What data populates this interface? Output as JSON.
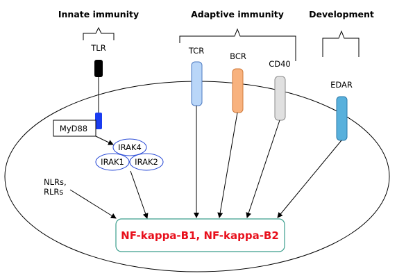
{
  "categories": {
    "innate": "Innate immunity",
    "adaptive": "Adaptive immunity",
    "development": "Development"
  },
  "receptors": {
    "tlr": "TLR",
    "tcr": "TCR",
    "bcr": "BCR",
    "cd40": "CD40",
    "edar": "EDAR"
  },
  "adaptors": {
    "myd88": "MyD88",
    "irak4": "IRAK4",
    "irak1": "IRAK1",
    "irak2": "IRAK2"
  },
  "other_inputs": {
    "line1": "NLRs,",
    "line2": "RLRs"
  },
  "output": {
    "label": "NF-kappa-B1, NF-kappa-B2",
    "color": "#e8101c",
    "border_color": "#3a9e8c"
  },
  "colors": {
    "tlr": "#000000",
    "myd88": "#1a3cf0",
    "irak_border": "#2a4bd6",
    "tcr_fill": "#b9d6f8",
    "tcr_stroke": "#4a78c0",
    "bcr_fill": "#f8b27e",
    "bcr_stroke": "#d07a3a",
    "cd40_fill": "#e0e0e0",
    "cd40_stroke": "#8a8a8a",
    "edar_fill": "#58b0dc",
    "edar_stroke": "#2a78a8"
  }
}
